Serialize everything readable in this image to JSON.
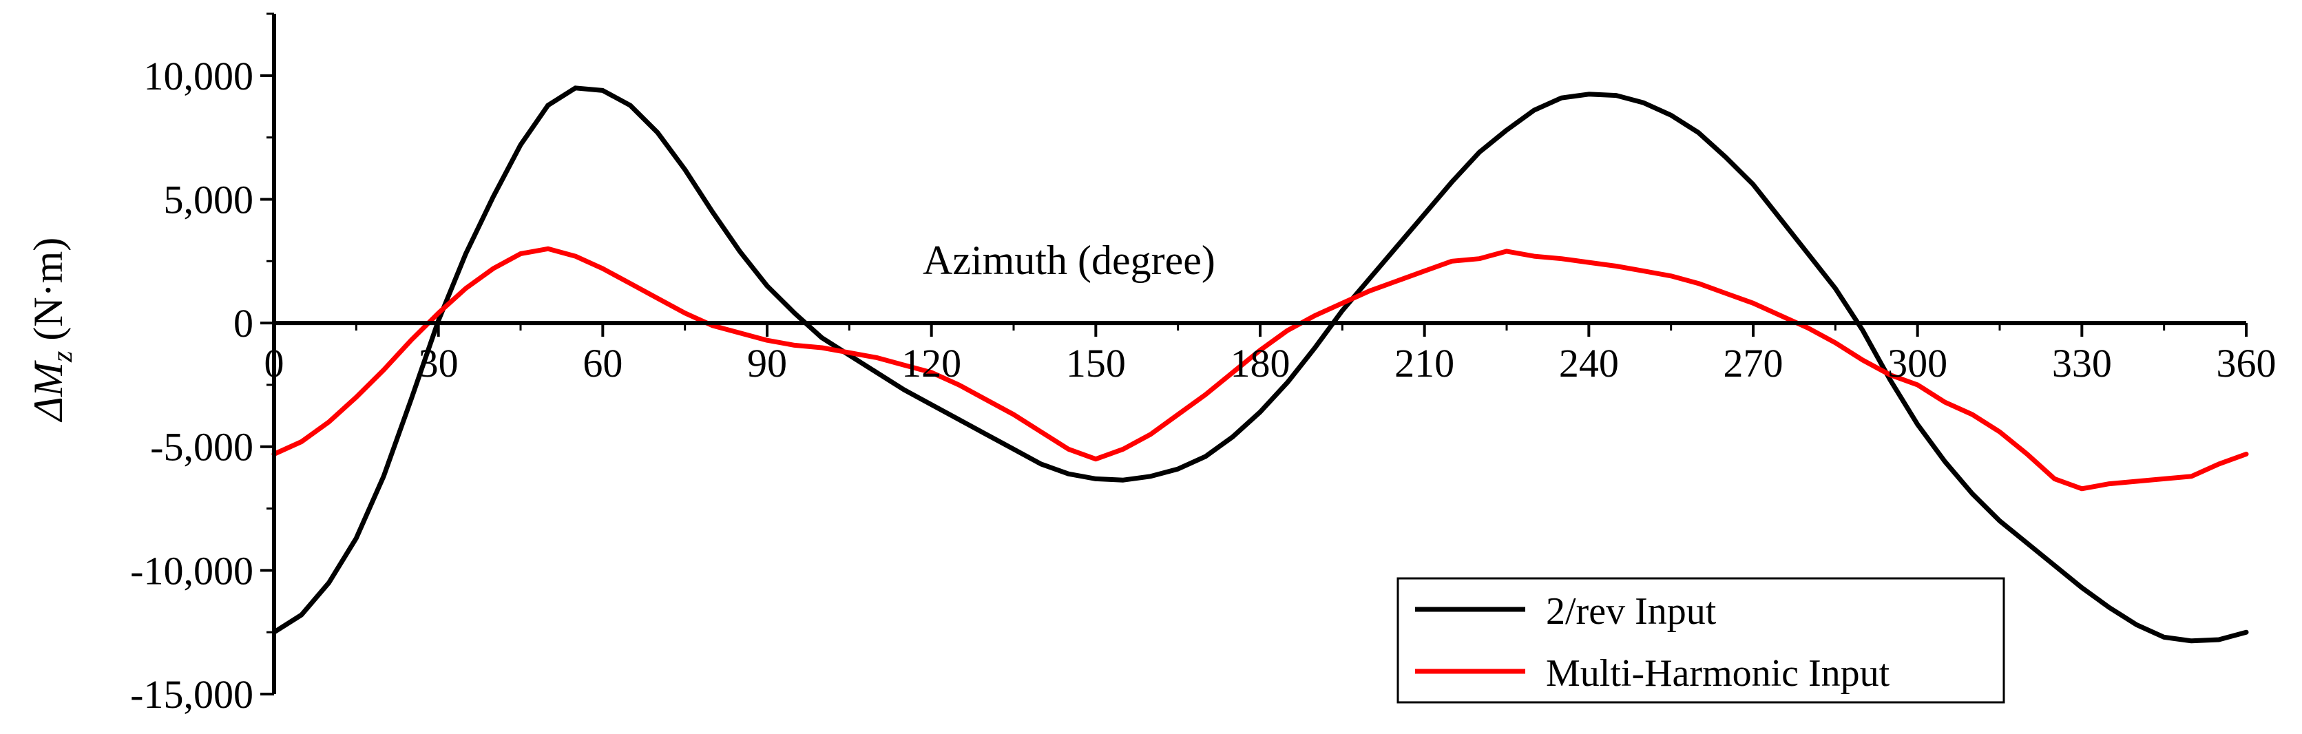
{
  "chart_data": {
    "type": "line",
    "title": "",
    "xlabel": "Azimuth (degree)",
    "ylabel": {
      "prefix": "ΔM",
      "subscript": "z",
      "unit": " (N·m)"
    },
    "xlim": [
      0,
      360
    ],
    "ylim": [
      -15000,
      12500
    ],
    "x_ticks": [
      0,
      30,
      60,
      90,
      120,
      150,
      180,
      210,
      240,
      270,
      300,
      330,
      360
    ],
    "x_tick_labels": [
      "0",
      "30",
      "60",
      "90",
      "120",
      "150",
      "180",
      "210",
      "240",
      "270",
      "300",
      "330",
      "360"
    ],
    "y_ticks": [
      -15000,
      -10000,
      -5000,
      0,
      5000,
      10000
    ],
    "y_tick_labels": [
      "-15,000",
      "-10,000",
      "-5,000",
      "0",
      "5,000",
      "10,000"
    ],
    "grid": false,
    "legend_position": "bottom-right",
    "series": [
      {
        "name": "2/rev Input",
        "color": "#000000",
        "x": [
          0,
          5,
          10,
          15,
          20,
          25,
          30,
          35,
          40,
          45,
          50,
          55,
          60,
          65,
          70,
          75,
          80,
          85,
          90,
          95,
          100,
          105,
          110,
          115,
          120,
          125,
          130,
          135,
          140,
          145,
          150,
          155,
          160,
          165,
          170,
          175,
          180,
          185,
          190,
          195,
          200,
          205,
          210,
          215,
          220,
          225,
          230,
          235,
          240,
          245,
          250,
          255,
          260,
          265,
          270,
          275,
          280,
          285,
          290,
          295,
          300,
          305,
          310,
          315,
          320,
          325,
          330,
          335,
          340,
          345,
          350,
          355,
          360
        ],
        "values": [
          -12500,
          -11800,
          -10500,
          -8700,
          -6200,
          -3100,
          100,
          2800,
          5100,
          7200,
          8800,
          9500,
          9400,
          8800,
          7700,
          6200,
          4500,
          2900,
          1500,
          400,
          -600,
          -1300,
          -2000,
          -2700,
          -3300,
          -3900,
          -4500,
          -5100,
          -5700,
          -6100,
          -6300,
          -6350,
          -6200,
          -5900,
          -5400,
          -4600,
          -3600,
          -2400,
          -1000,
          500,
          1800,
          3100,
          4400,
          5700,
          6900,
          7800,
          8600,
          9100,
          9250,
          9200,
          8900,
          8400,
          7700,
          6700,
          5600,
          4200,
          2800,
          1400,
          -300,
          -2300,
          -4100,
          -5600,
          -6900,
          -8000,
          -8900,
          -9800,
          -10700,
          -11500,
          -12200,
          -12700,
          -12850,
          -12800,
          -12500
        ]
      },
      {
        "name": "Multi-Harmonic Input",
        "color": "#ff0000",
        "x": [
          0,
          5,
          10,
          15,
          20,
          25,
          30,
          35,
          40,
          45,
          50,
          55,
          60,
          65,
          70,
          75,
          80,
          85,
          90,
          95,
          100,
          105,
          110,
          115,
          120,
          125,
          130,
          135,
          140,
          145,
          150,
          155,
          160,
          165,
          170,
          175,
          180,
          185,
          190,
          195,
          200,
          205,
          210,
          215,
          220,
          225,
          230,
          235,
          240,
          245,
          250,
          255,
          260,
          265,
          270,
          275,
          280,
          285,
          290,
          295,
          300,
          305,
          310,
          315,
          320,
          325,
          330,
          335,
          340,
          345,
          350,
          355,
          360
        ],
        "values": [
          -5300,
          -4800,
          -4000,
          -3000,
          -1900,
          -700,
          400,
          1400,
          2200,
          2800,
          3000,
          2700,
          2200,
          1600,
          1000,
          400,
          -100,
          -400,
          -700,
          -900,
          -1000,
          -1200,
          -1400,
          -1700,
          -2000,
          -2500,
          -3100,
          -3700,
          -4400,
          -5100,
          -5500,
          -5100,
          -4500,
          -3700,
          -2900,
          -2000,
          -1100,
          -300,
          300,
          800,
          1300,
          1700,
          2100,
          2500,
          2600,
          2900,
          2700,
          2600,
          2450,
          2300,
          2100,
          1900,
          1600,
          1200,
          800,
          300,
          -200,
          -800,
          -1500,
          -2100,
          -2500,
          -3200,
          -3700,
          -4400,
          -5300,
          -6300,
          -6700,
          -6500,
          -6400,
          -6300,
          -6200,
          -5700,
          -5300
        ]
      }
    ]
  }
}
